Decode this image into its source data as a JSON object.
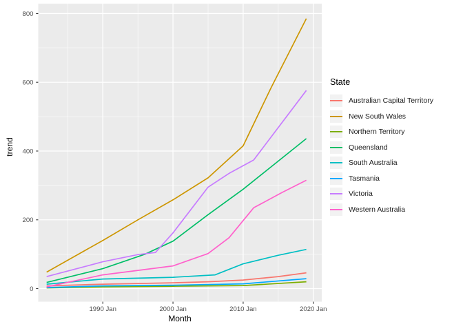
{
  "chart_data": {
    "type": "line",
    "title": "",
    "xlabel": "Month",
    "ylabel": "trend",
    "legend_title": "State",
    "legend_position": "right",
    "panel_background": "#EBEBEB",
    "gridline_color": "#FFFFFF",
    "tick_label_color": "#4D4D4D",
    "axis_title_color": "#000000",
    "xlim": [
      1980.8,
      2021.2
    ],
    "ylim": [
      -38,
      828
    ],
    "x_major_ticks": [
      1990,
      2000,
      2010,
      2020
    ],
    "x_tick_labels": [
      "1990 Jan",
      "2000 Jan",
      "2010 Jan",
      "2020 Jan"
    ],
    "x_minor_ticks": [
      1985,
      1995,
      2005,
      2015
    ],
    "y_major_ticks": [
      0,
      200,
      400,
      600,
      800
    ],
    "y_tick_labels": [
      "0",
      "200",
      "400",
      "600",
      "800"
    ],
    "y_minor_ticks": [
      100,
      300,
      500,
      700
    ],
    "series": [
      {
        "name": "Australian Capital Territory",
        "color": "#F8766D",
        "points": [
          [
            1982,
            8
          ],
          [
            1990,
            13
          ],
          [
            2000,
            17
          ],
          [
            2005,
            20
          ],
          [
            2010,
            25
          ],
          [
            2015,
            35
          ],
          [
            2019,
            46
          ]
        ]
      },
      {
        "name": "New South Wales",
        "color": "#CD9600",
        "points": [
          [
            1982,
            48
          ],
          [
            1990,
            140
          ],
          [
            1995,
            200
          ],
          [
            2000,
            258
          ],
          [
            2005,
            322
          ],
          [
            2010,
            415
          ],
          [
            2014,
            585
          ],
          [
            2019,
            785
          ]
        ]
      },
      {
        "name": "Northern Territory",
        "color": "#7CAE00",
        "points": [
          [
            1982,
            2
          ],
          [
            1990,
            5
          ],
          [
            2000,
            7
          ],
          [
            2010,
            9
          ],
          [
            2019,
            20
          ]
        ]
      },
      {
        "name": "Queensland",
        "color": "#00BE67",
        "points": [
          [
            1982,
            18
          ],
          [
            1990,
            58
          ],
          [
            1996,
            100
          ],
          [
            2000,
            138
          ],
          [
            2005,
            215
          ],
          [
            2010,
            289
          ],
          [
            2019,
            436
          ]
        ]
      },
      {
        "name": "South Australia",
        "color": "#00BFC4",
        "points": [
          [
            1982,
            13
          ],
          [
            1990,
            28
          ],
          [
            2000,
            33
          ],
          [
            2006,
            40
          ],
          [
            2010,
            72
          ],
          [
            2015,
            97
          ],
          [
            2019,
            114
          ]
        ]
      },
      {
        "name": "Tasmania",
        "color": "#00A9FF",
        "points": [
          [
            1982,
            3
          ],
          [
            1990,
            8
          ],
          [
            2000,
            10
          ],
          [
            2010,
            14
          ],
          [
            2019,
            29
          ]
        ]
      },
      {
        "name": "Victoria",
        "color": "#C77CFF",
        "points": [
          [
            1982,
            35
          ],
          [
            1990,
            78
          ],
          [
            1995,
            99
          ],
          [
            1997.5,
            105
          ],
          [
            2000,
            162
          ],
          [
            2005,
            295
          ],
          [
            2008,
            335
          ],
          [
            2011.5,
            374
          ],
          [
            2019,
            576
          ]
        ]
      },
      {
        "name": "Western Australia",
        "color": "#FF61CC",
        "points": [
          [
            1982,
            5
          ],
          [
            1990,
            40
          ],
          [
            2000,
            66
          ],
          [
            2005,
            102
          ],
          [
            2008,
            148
          ],
          [
            2011.5,
            235
          ],
          [
            2015.5,
            279
          ],
          [
            2019,
            315
          ]
        ]
      }
    ]
  }
}
